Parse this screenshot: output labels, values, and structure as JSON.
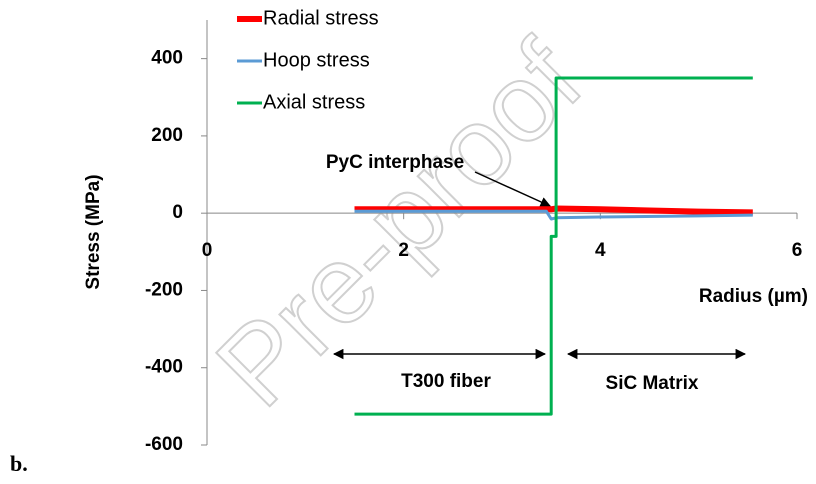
{
  "chart_data": {
    "type": "line",
    "y_label": "Stress (MPa)",
    "x_label": "Radius (µm)",
    "panel_label": "b.",
    "watermark": "Pre-proof",
    "annotations": [
      "PyC interphase",
      "T300 fiber",
      "SiC Matrix"
    ],
    "xlim": [
      0,
      6
    ],
    "xticks": [
      0,
      2,
      4,
      6
    ],
    "ylim": [
      -600,
      500
    ],
    "yticks": [
      -600,
      -400,
      -200,
      0,
      200,
      400
    ],
    "legend": "top-left",
    "series": [
      {
        "name": "Radial stress",
        "color": "#ff0000",
        "x": [
          1.5,
          3.5,
          3.55,
          4.0,
          4.5,
          5.0,
          5.55
        ],
        "values": [
          10,
          10,
          12,
          10,
          7,
          4,
          2
        ]
      },
      {
        "name": "Hoop stress",
        "color": "#5b9bd5",
        "x": [
          1.5,
          3.45,
          3.5,
          3.55,
          4.0,
          5.0,
          5.55
        ],
        "values": [
          5,
          5,
          -15,
          -12,
          -10,
          -7,
          -5
        ]
      },
      {
        "name": "Axial stress",
        "color": "#00b050",
        "x": [
          1.5,
          3.5,
          3.5,
          3.55,
          3.55,
          5.55
        ],
        "values": [
          -520,
          -520,
          -60,
          -60,
          350,
          350
        ]
      }
    ]
  }
}
